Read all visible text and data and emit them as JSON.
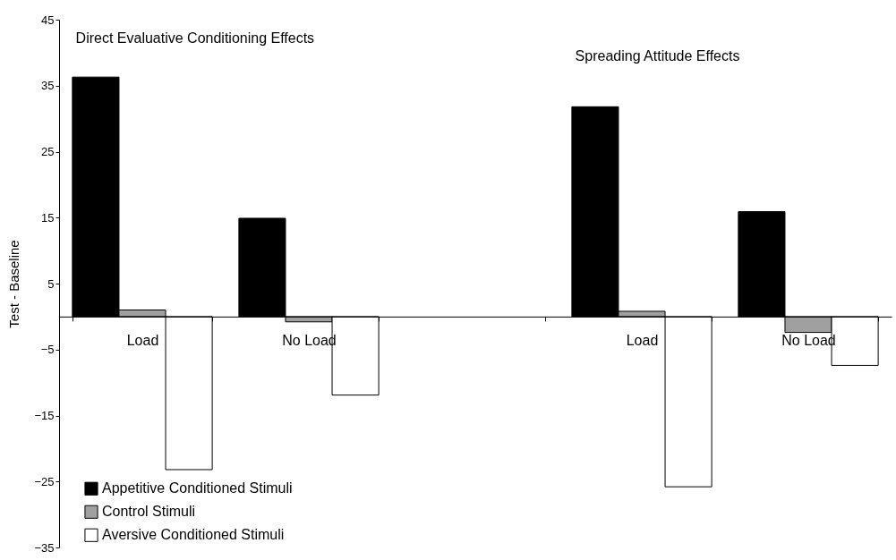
{
  "chart_data": {
    "type": "bar",
    "categories": [
      "Load",
      "No Load",
      null,
      "Load",
      "No Load"
    ],
    "ylabel": "Test - Baseline",
    "ylim": [
      -35,
      45
    ],
    "yticks": [
      -35,
      -25,
      -15,
      -5,
      5,
      15,
      25,
      35,
      45
    ],
    "series": [
      {
        "name": "Appetitive Conditioned Stimuli",
        "color": "#000000",
        "values": [
          36.3,
          14.9,
          null,
          31.8,
          15.9
        ]
      },
      {
        "name": "Control Stimuli",
        "color": "#a0a0a0",
        "values": [
          1.0,
          -0.8,
          null,
          0.8,
          -2.4
        ]
      },
      {
        "name": "Aversive Conditioned Stimuli",
        "color": "#ffffff",
        "values": [
          -23.2,
          -11.9,
          null,
          -25.8,
          -7.4
        ]
      }
    ],
    "annotations": [
      "Direct Evaluative Conditioning Effects",
      "Spreading Attitude Effects"
    ],
    "legend": "bottom left",
    "grid": false
  }
}
